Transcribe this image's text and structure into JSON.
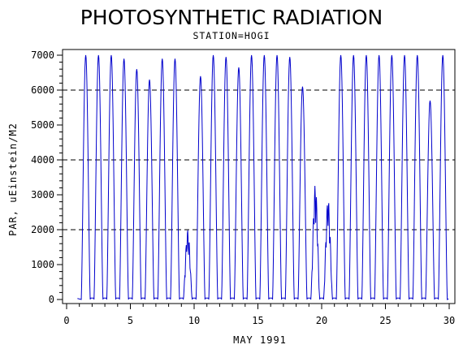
{
  "chart_data": {
    "type": "line",
    "title": "PHOTOSYNTHETIC RADIATION",
    "subtitle": "STATION=HOGI",
    "xlabel": "MAY 1991",
    "ylabel": "PAR, uEinstein/M2",
    "xlim": [
      0,
      30
    ],
    "ylim": [
      0,
      7000
    ],
    "x_ticks": [
      0,
      5,
      10,
      15,
      20,
      25,
      30
    ],
    "y_ticks": [
      0,
      1000,
      2000,
      3000,
      4000,
      5000,
      6000,
      7000
    ],
    "reference_lines_y": [
      2000,
      4000,
      6000
    ],
    "grid": false,
    "series": [
      {
        "color": "#0000cc",
        "daily_peaks": [
          {
            "day": 1,
            "peak": 7000
          },
          {
            "day": 2,
            "peak": 7000
          },
          {
            "day": 3,
            "peak": 7000
          },
          {
            "day": 4,
            "peak": 6900
          },
          {
            "day": 5,
            "peak": 6600
          },
          {
            "day": 6,
            "peak": 6300
          },
          {
            "day": 7,
            "peak": 6900
          },
          {
            "day": 8,
            "peak": 6900
          },
          {
            "day": 9,
            "peak": 2000
          },
          {
            "day": 10,
            "peak": 6400
          },
          {
            "day": 11,
            "peak": 7000
          },
          {
            "day": 12,
            "peak": 6950
          },
          {
            "day": 13,
            "peak": 6650
          },
          {
            "day": 14,
            "peak": 7000
          },
          {
            "day": 15,
            "peak": 7000
          },
          {
            "day": 16,
            "peak": 7000
          },
          {
            "day": 17,
            "peak": 6950
          },
          {
            "day": 18,
            "peak": 6100
          },
          {
            "day": 19,
            "peak": 3300
          },
          {
            "day": 20,
            "peak": 2900
          },
          {
            "day": 21,
            "peak": 7000
          },
          {
            "day": 22,
            "peak": 7000
          },
          {
            "day": 23,
            "peak": 7000
          },
          {
            "day": 24,
            "peak": 7000
          },
          {
            "day": 25,
            "peak": 7000
          },
          {
            "day": 26,
            "peak": 7000
          },
          {
            "day": 27,
            "peak": 7000
          },
          {
            "day": 28,
            "peak": 5700
          },
          {
            "day": 29,
            "peak": 7000
          }
        ]
      }
    ]
  }
}
